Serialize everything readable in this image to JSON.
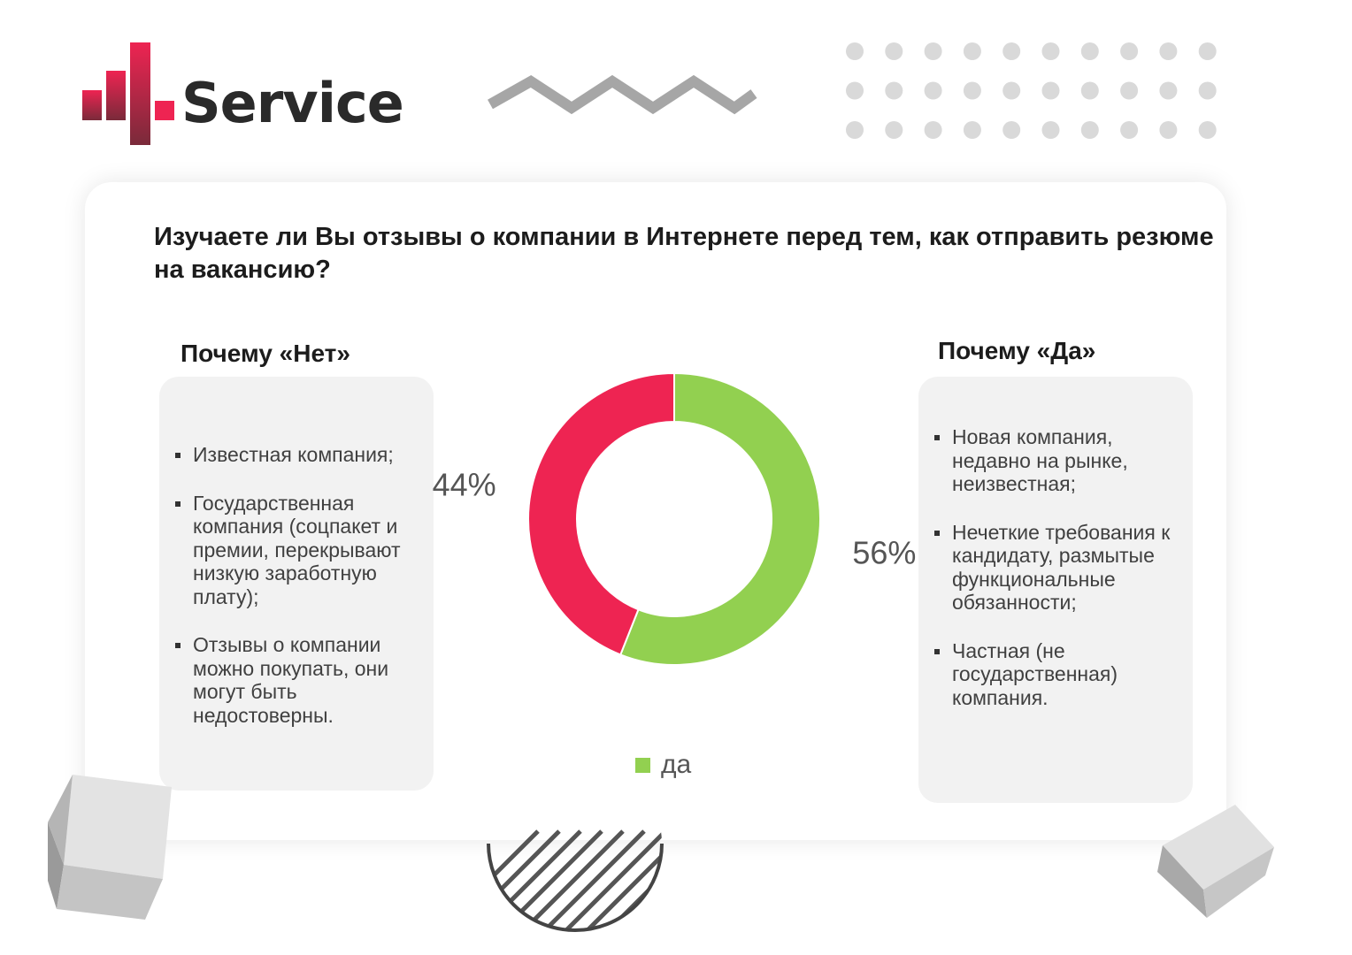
{
  "brand": {
    "name": "Service",
    "colors": {
      "accent": "#ee2452",
      "dark": "#7a2a3a",
      "text": "#2a2a2a"
    }
  },
  "question": "Изучаете ли Вы отзывы о компании в Интернете перед тем, как отправить резюме на вакансию?",
  "left_panel": {
    "title": "Почему «Нет»",
    "items": [
      "Известная компания;",
      "Государственная компания (соцпакет и премии, перекрывают низкую заработную плату);",
      "Отзывы о компании можно покупать, они могут быть недостоверны."
    ]
  },
  "right_panel": {
    "title": "Почему «Да»",
    "items": [
      "Новая компания, недавно на рынке, неизвестная;",
      "Нечеткие требования к кандидату, размытые функциональные обязанности;",
      "Частная (не государственная) компания."
    ]
  },
  "chart_data": {
    "type": "pie",
    "style": "donut",
    "slices": [
      {
        "label": "да",
        "value": 56,
        "display": "56%",
        "color": "#92d050"
      },
      {
        "value": 44,
        "display": "44%",
        "color": "#ee2452"
      }
    ],
    "legend": {
      "position": "bottom",
      "entries": [
        "да"
      ]
    }
  }
}
